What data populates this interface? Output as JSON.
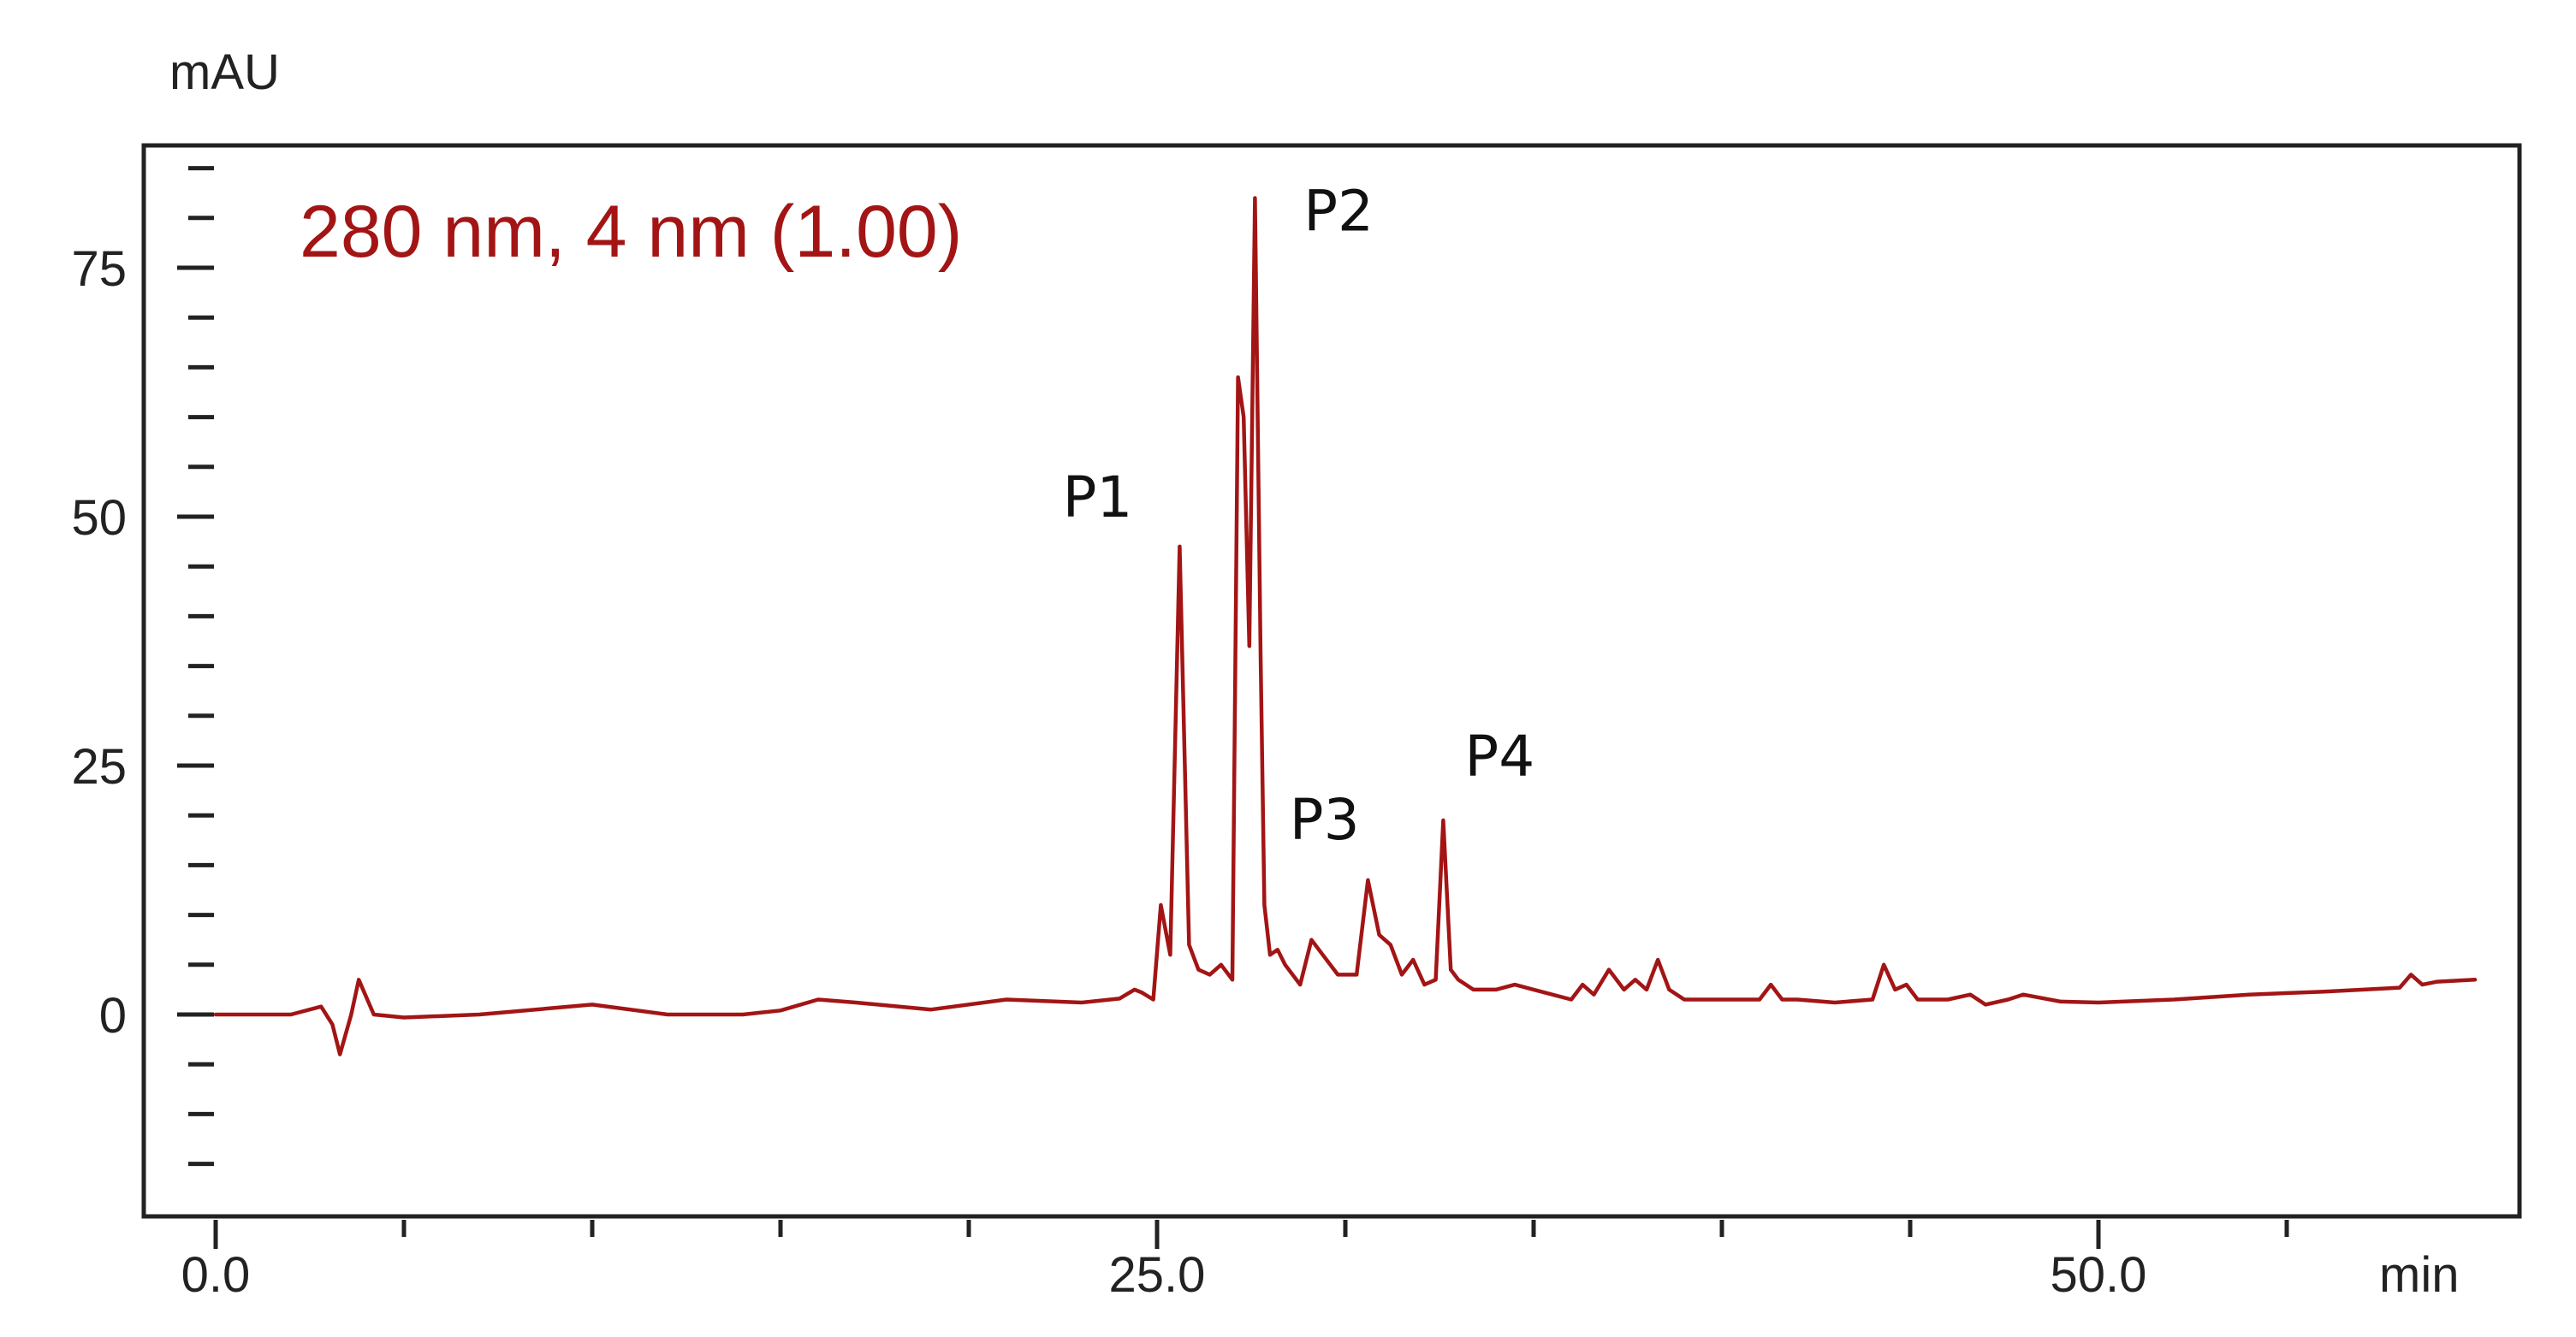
{
  "chart_data": {
    "type": "line",
    "ylabel": "mAU",
    "xlabel": "min",
    "annotation": "280 nm, 4 nm (1.00)",
    "xlim": [
      -2,
      60
    ],
    "ylim": [
      -17,
      86
    ],
    "x_major_ticks": [
      {
        "value": 0,
        "label": "0.0"
      },
      {
        "value": 25,
        "label": "25.0"
      },
      {
        "value": 50,
        "label": "50.0"
      }
    ],
    "x_minor_ticks": [
      5,
      10,
      15,
      20,
      30,
      35,
      40,
      45,
      55
    ],
    "y_major_ticks": [
      {
        "value": 0,
        "label": "0"
      },
      {
        "value": 25,
        "label": "25"
      },
      {
        "value": 50,
        "label": "50"
      },
      {
        "value": 75,
        "label": "75"
      }
    ],
    "y_minor_step": 5,
    "grid": false,
    "legend": "none",
    "colors": {
      "trace": "#a31515",
      "annotation": "#a31515",
      "frame": "#222222"
    },
    "peak_labels": [
      {
        "label": "P1",
        "x": 25.6,
        "y": 47
      },
      {
        "label": "P2",
        "x": 27.8,
        "y": 82
      },
      {
        "label": "P3",
        "x": 30.9,
        "y": 13.5
      },
      {
        "label": "P4",
        "x": 32.6,
        "y": 19.5
      }
    ],
    "series": [
      {
        "x": [
          0,
          2,
          2.8,
          3.1,
          3.3,
          3.6,
          3.8,
          4.2,
          5,
          7,
          10,
          12,
          14,
          15,
          16,
          17,
          19,
          21,
          23,
          24,
          24.4,
          24.6,
          24.9,
          25.1,
          25.35,
          25.6,
          25.85,
          26.1,
          26.4,
          26.7,
          27.0,
          27.15,
          27.3,
          27.45,
          27.6,
          27.75,
          27.85,
          28.0,
          28.2,
          28.4,
          28.8,
          29.1,
          29.4,
          29.8,
          30.3,
          30.6,
          30.9,
          31.2,
          31.5,
          31.8,
          32.1,
          32.4,
          32.6,
          32.8,
          33.0,
          33.4,
          34.0,
          34.5,
          35.0,
          36.0,
          36.3,
          36.6,
          37.0,
          37.4,
          37.7,
          38.0,
          38.3,
          38.6,
          39.0,
          39.5,
          40.0,
          41.0,
          41.3,
          41.6,
          42.0,
          43.0,
          44.0,
          44.3,
          44.6,
          44.9,
          45.2,
          46.0,
          46.6,
          47.0,
          47.6,
          48.0,
          49.0,
          50.0,
          52.0,
          54.0,
          56.0,
          58.0,
          58.3,
          58.6,
          59.0,
          60.0
        ],
        "y": [
          0,
          0,
          0.8,
          -1,
          -4,
          0,
          3.5,
          0,
          -0.3,
          0,
          1,
          0,
          0,
          0.4,
          1.5,
          1.2,
          0.5,
          1.5,
          1.2,
          1.6,
          2.5,
          2.2,
          1.5,
          11,
          6,
          47,
          7,
          4.5,
          4,
          5,
          3.5,
          64,
          60,
          37,
          82,
          36,
          11,
          6,
          6.5,
          5,
          3,
          7.5,
          6,
          4,
          4,
          13.5,
          8,
          7,
          4,
          5.5,
          3,
          3.5,
          19.5,
          4.5,
          3.5,
          2.5,
          2.5,
          3,
          2.5,
          1.5,
          3,
          2,
          4.5,
          2.5,
          3.5,
          2.5,
          5.5,
          2.5,
          1.5,
          1.5,
          1.5,
          1.5,
          3,
          1.5,
          1.5,
          1.2,
          1.5,
          5,
          2.5,
          3,
          1.5,
          1.5,
          2,
          1,
          1.5,
          2,
          1.3,
          1.2,
          1.5,
          2,
          2.3,
          2.7,
          4,
          3,
          3.3,
          3.5
        ]
      }
    ]
  }
}
